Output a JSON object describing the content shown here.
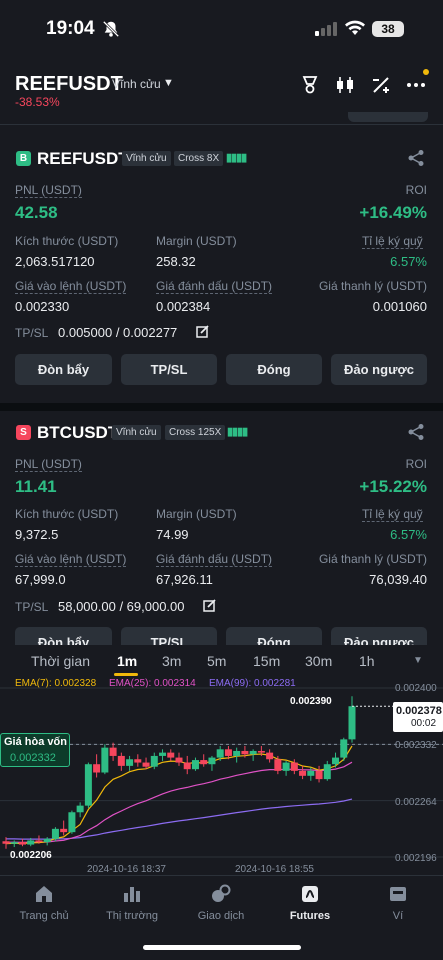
{
  "status_bar": {
    "time": "19:04",
    "battery": "38"
  },
  "header": {
    "symbol": "REEFUSDT",
    "contract_type": "Vĩnh cửu",
    "change": "-38.53%"
  },
  "positions": [
    {
      "badge": "B",
      "badge_color": "#2ebd85",
      "symbol": "REEFUSDT",
      "contract_type": "Vĩnh cửu",
      "margin_mode": "Cross 8X",
      "pnl_label": "PNL (USDT)",
      "pnl": "42.58",
      "roi_label": "ROI",
      "roi": "+16.49%",
      "size_label": "Kích thước (USDT)",
      "size": "2,063.517120",
      "margin_label": "Margin (USDT)",
      "margin": "258.32",
      "ratio_label": "Tỉ lệ ký quỹ",
      "ratio": "6.57%",
      "entry_label": "Giá vào lệnh (USDT)",
      "entry": "0.002330",
      "mark_label": "Giá đánh dấu (USDT)",
      "mark": "0.002384",
      "liq_label": "Giá thanh lý (USDT)",
      "liq": "0.001060",
      "tpsl_label": "TP/SL",
      "tpsl": "0.005000 / 0.002277"
    },
    {
      "badge": "S",
      "badge_color": "#f6465d",
      "symbol": "BTCUSDT",
      "contract_type": "Vĩnh cửu",
      "margin_mode": "Cross 125X",
      "pnl_label": "PNL (USDT)",
      "pnl": "11.41",
      "roi_label": "ROI",
      "roi": "+15.22%",
      "size_label": "Kích thước (USDT)",
      "size": "9,372.5",
      "margin_label": "Margin (USDT)",
      "margin": "74.99",
      "ratio_label": "Tỉ lệ ký quỹ",
      "ratio": "6.57%",
      "entry_label": "Giá vào lệnh (USDT)",
      "entry": "67,999.0",
      "mark_label": "Giá đánh dấu (USDT)",
      "mark": "67,926.11",
      "liq_label": "Giá thanh lý (USDT)",
      "liq": "76,039.40",
      "tpsl_label": "TP/SL",
      "tpsl": "58,000.00 / 69,000.00"
    }
  ],
  "buttons": {
    "leverage": "Đòn bẩy",
    "tpsl": "TP/SL",
    "close": "Đóng",
    "reverse": "Đảo ngược"
  },
  "timeframes": {
    "time": "Thời gian",
    "items": [
      "1m",
      "3m",
      "5m",
      "15m",
      "30m",
      "1h"
    ],
    "active": "1m"
  },
  "ema": {
    "ema7": "EMA(7): 0.002328",
    "ema25": "EMA(25): 0.002314",
    "ema99": "EMA(99): 0.002281",
    "color7": "#f0b90b",
    "color25": "#e052c6",
    "color99": "#8c6cf2"
  },
  "chart_data": {
    "type": "candlestick",
    "y_ticks": [
      "0.002400",
      "0.002332",
      "0.002264",
      "0.002196"
    ],
    "x_ticks": [
      "2024-10-16 18:37",
      "2024-10-16 18:55"
    ],
    "high_label": "0.002390",
    "low_label": "0.002206",
    "last_price": "0.002378",
    "countdown": "00:02",
    "breakeven_label": "Giá hòa vốn",
    "breakeven_price": "0.002332",
    "breakeven_tick": "0.002332",
    "candles": [
      [
        0.002215,
        0.00222,
        0.002206,
        0.002212
      ],
      [
        0.002212,
        0.002216,
        0.002208,
        0.002214
      ],
      [
        0.002214,
        0.002218,
        0.002209,
        0.002211
      ],
      [
        0.002211,
        0.002219,
        0.002209,
        0.002216
      ],
      [
        0.002216,
        0.002222,
        0.002212,
        0.002214
      ],
      [
        0.002214,
        0.00222,
        0.00221,
        0.002218
      ],
      [
        0.002218,
        0.002232,
        0.002215,
        0.00223
      ],
      [
        0.00223,
        0.00224,
        0.002222,
        0.002226
      ],
      [
        0.002226,
        0.002252,
        0.002224,
        0.00225
      ],
      [
        0.00225,
        0.002262,
        0.002244,
        0.002258
      ],
      [
        0.002258,
        0.00231,
        0.002255,
        0.002308
      ],
      [
        0.002308,
        0.00232,
        0.002292,
        0.002298
      ],
      [
        0.002298,
        0.002332,
        0.002296,
        0.002328
      ],
      [
        0.002328,
        0.002334,
        0.002312,
        0.002318
      ],
      [
        0.002318,
        0.002322,
        0.0023,
        0.002306
      ],
      [
        0.002306,
        0.002318,
        0.0023,
        0.002314
      ],
      [
        0.002314,
        0.00232,
        0.002305,
        0.00231
      ],
      [
        0.00231,
        0.002316,
        0.002302,
        0.002305
      ],
      [
        0.002305,
        0.002322,
        0.002302,
        0.002318
      ],
      [
        0.002318,
        0.002326,
        0.002312,
        0.002322
      ],
      [
        0.002322,
        0.002326,
        0.002312,
        0.002316
      ],
      [
        0.002316,
        0.002322,
        0.002306,
        0.00231
      ],
      [
        0.00231,
        0.002318,
        0.002296,
        0.002302
      ],
      [
        0.002302,
        0.002316,
        0.0023,
        0.002313
      ],
      [
        0.002313,
        0.00232,
        0.002305,
        0.002308
      ],
      [
        0.002308,
        0.002318,
        0.0023,
        0.002316
      ],
      [
        0.002316,
        0.00233,
        0.002312,
        0.002326
      ],
      [
        0.002326,
        0.00233,
        0.002314,
        0.002318
      ],
      [
        0.002318,
        0.002328,
        0.00231,
        0.002324
      ],
      [
        0.002324,
        0.00233,
        0.002316,
        0.00232
      ],
      [
        0.00232,
        0.002326,
        0.002312,
        0.002324
      ],
      [
        0.002324,
        0.00233,
        0.002318,
        0.002322
      ],
      [
        0.002322,
        0.002326,
        0.00231,
        0.002314
      ],
      [
        0.002314,
        0.002318,
        0.002296,
        0.0023
      ],
      [
        0.0023,
        0.002312,
        0.002294,
        0.00231
      ],
      [
        0.00231,
        0.002314,
        0.002296,
        0.0023
      ],
      [
        0.0023,
        0.002306,
        0.00229,
        0.002294
      ],
      [
        0.002294,
        0.002304,
        0.002288,
        0.0023
      ],
      [
        0.0023,
        0.002306,
        0.002286,
        0.00229
      ],
      [
        0.00229,
        0.002312,
        0.002288,
        0.002308
      ],
      [
        0.002308,
        0.002322,
        0.002304,
        0.002316
      ],
      [
        0.002316,
        0.00234,
        0.002312,
        0.002338
      ],
      [
        0.002338,
        0.00239,
        0.002334,
        0.002378
      ]
    ]
  },
  "nav": {
    "home": "Trang chủ",
    "market": "Thị trường",
    "trade": "Giao dịch",
    "futures": "Futures",
    "wallet": "Ví"
  }
}
